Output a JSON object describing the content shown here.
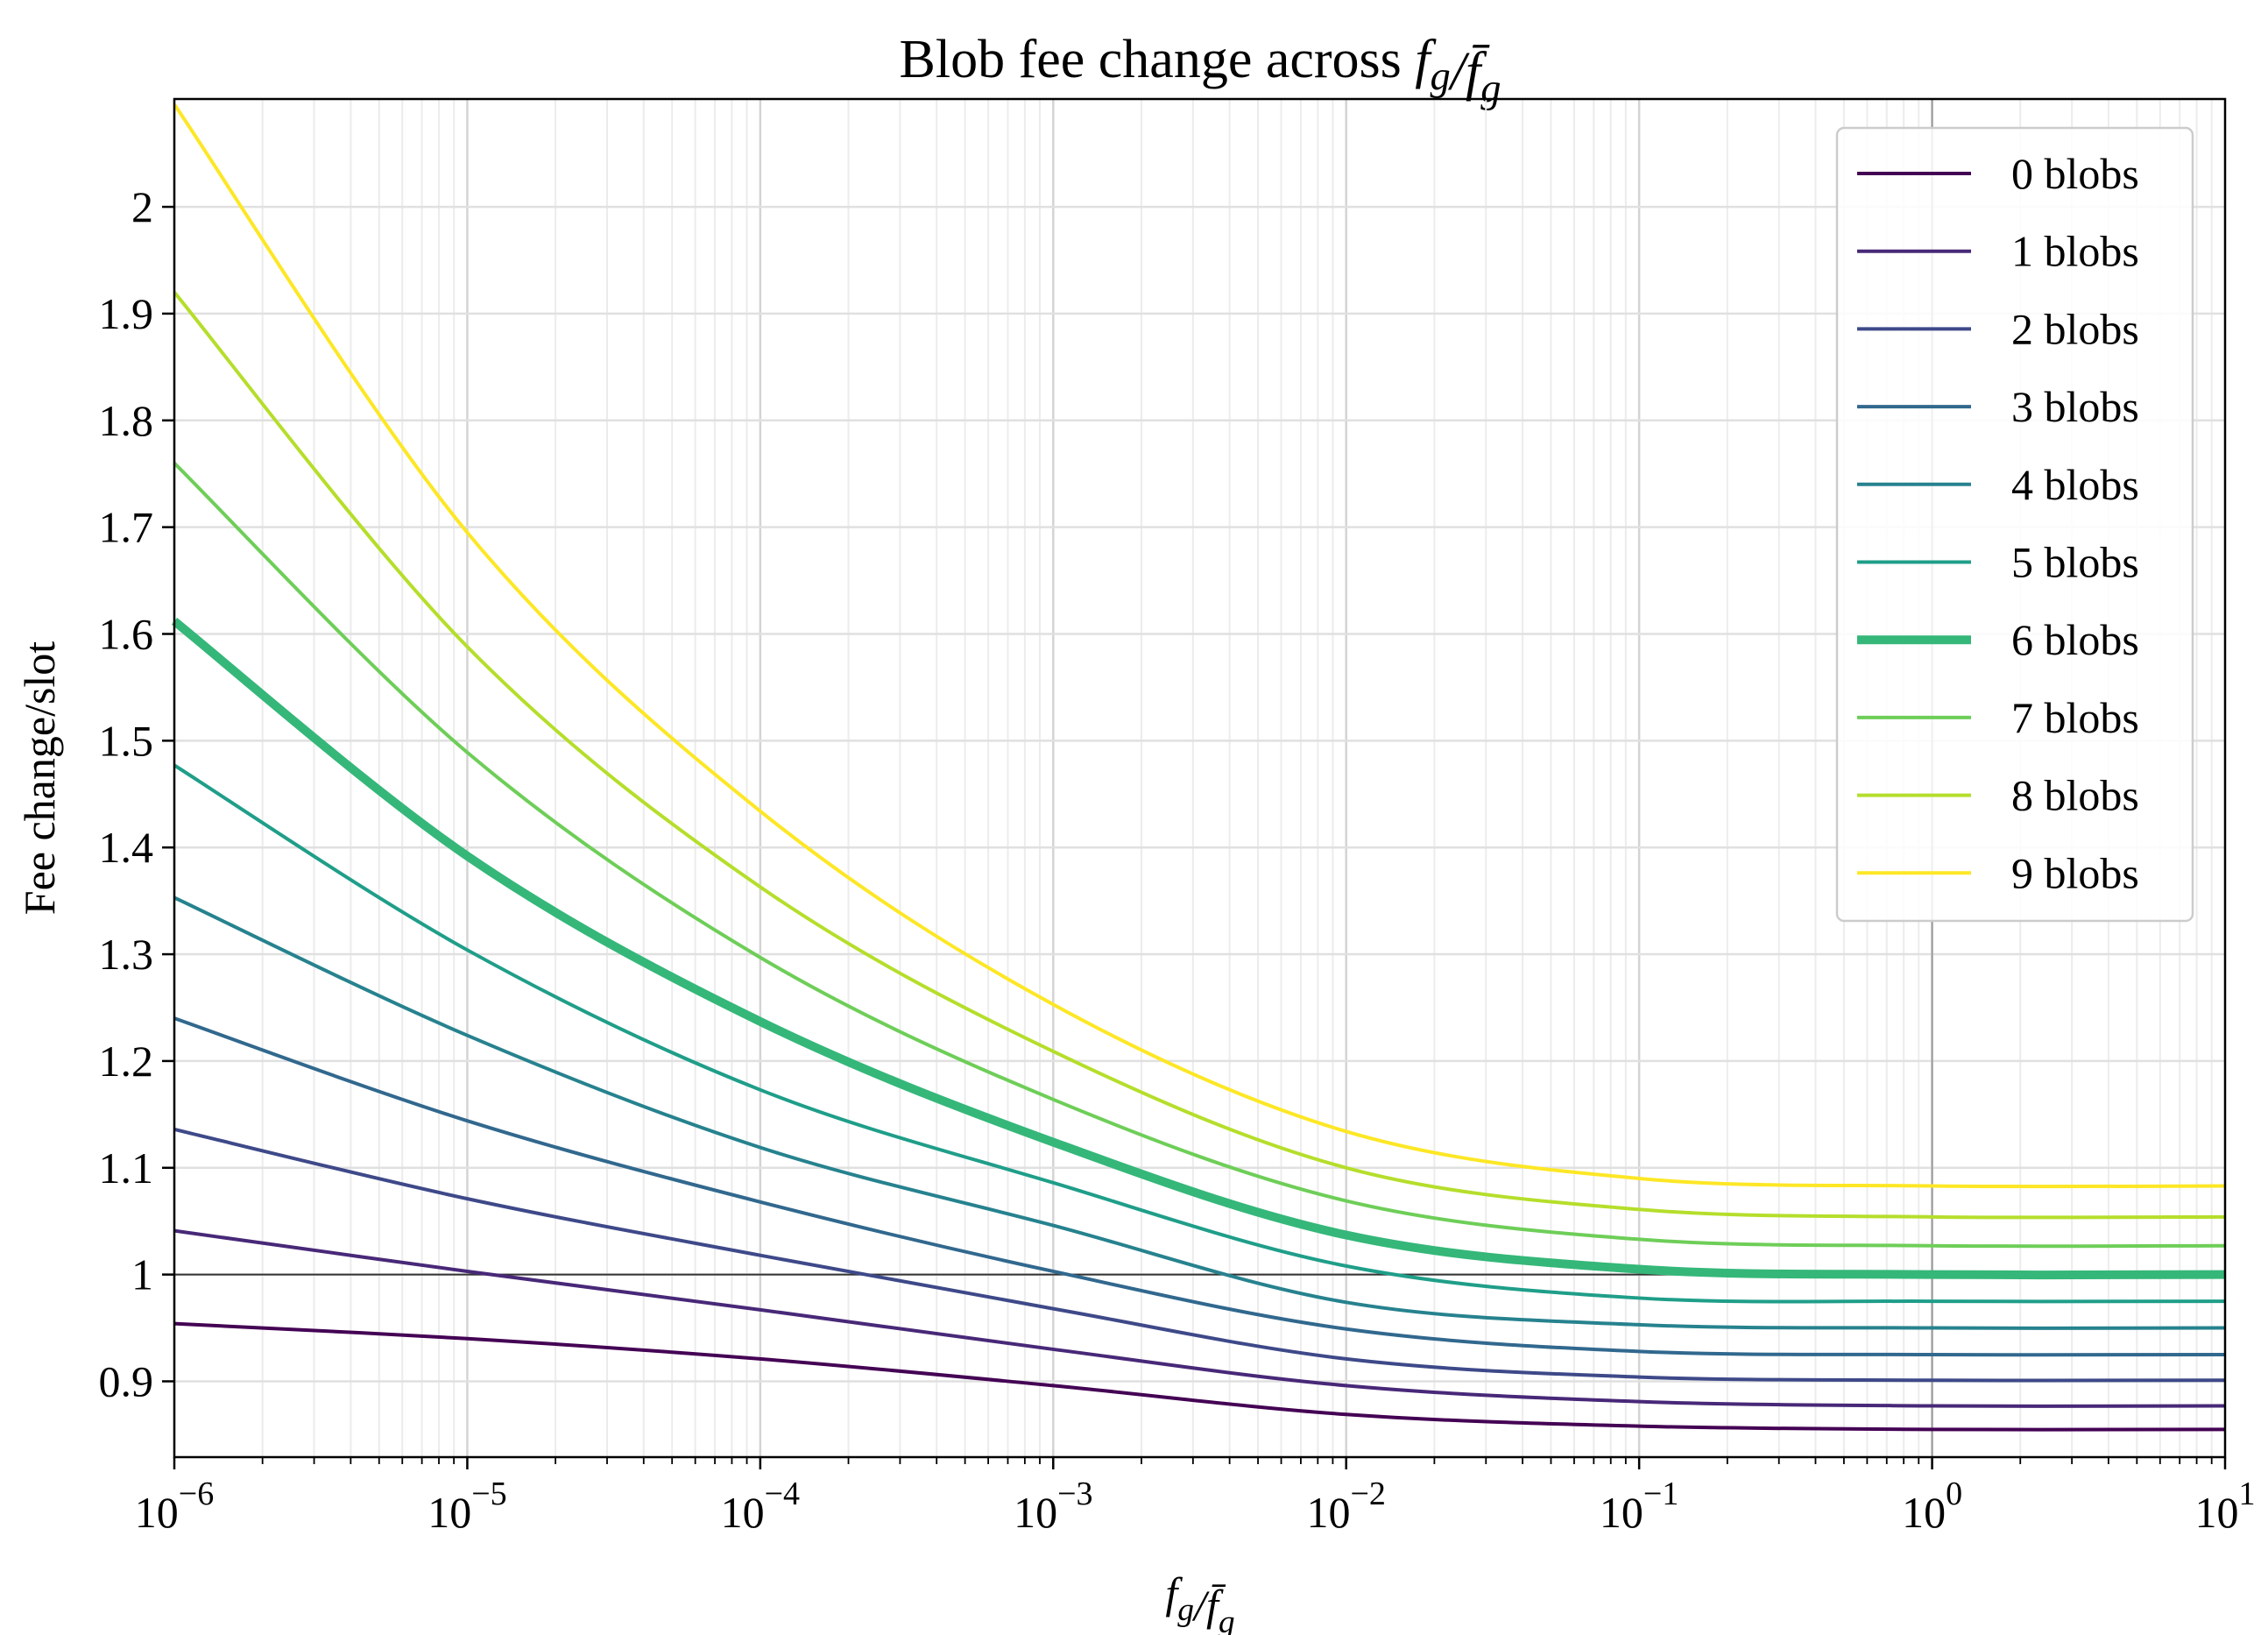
{
  "chart_data": {
    "type": "line",
    "title": "Blob fee change across f_g/f̄_g",
    "title_prefix": "Blob fee change across ",
    "title_math": "f_g/f̄_g",
    "xlabel": "f_g/f̄_g",
    "ylabel": "Fee change/slot",
    "xscale": "log",
    "xlim": [
      1e-06,
      10
    ],
    "ylim": [
      0.829,
      2.101
    ],
    "grid": "major and minor (x), major (y)",
    "legend_position": "top-right",
    "x_ticks": [
      {
        "base": "10",
        "exp": "−6"
      },
      {
        "base": "10",
        "exp": "−5"
      },
      {
        "base": "10",
        "exp": "−4"
      },
      {
        "base": "10",
        "exp": "−3"
      },
      {
        "base": "10",
        "exp": "−2"
      },
      {
        "base": "10",
        "exp": "−1"
      },
      {
        "base": "10",
        "exp": "0"
      },
      {
        "base": "10",
        "exp": "1"
      }
    ],
    "y_ticks": [
      "0.9",
      "1",
      "1.1",
      "1.2",
      "1.3",
      "1.4",
      "1.5",
      "1.6",
      "1.7",
      "1.8",
      "1.9",
      "2"
    ],
    "y_tick_values": [
      0.9,
      1.0,
      1.1,
      1.2,
      1.3,
      1.4,
      1.5,
      1.6,
      1.7,
      1.8,
      1.9,
      2.0
    ],
    "reference_lines": {
      "horizontal_y": 1,
      "vertical_x": 1
    },
    "x": [
      1e-06,
      1e-05,
      0.0001,
      0.001,
      0.01,
      0.1,
      1,
      10
    ],
    "series": [
      {
        "name": "0 blobs",
        "color": "#440154",
        "highlight": false,
        "values": [
          0.954,
          0.94,
          0.921,
          0.896,
          0.869,
          0.858,
          0.855,
          0.855
        ]
      },
      {
        "name": "1 blobs",
        "color": "#482878",
        "highlight": false,
        "values": [
          1.041,
          1.003,
          0.967,
          0.93,
          0.896,
          0.881,
          0.877,
          0.877
        ]
      },
      {
        "name": "2 blobs",
        "color": "#3e4989",
        "highlight": false,
        "values": [
          1.136,
          1.071,
          1.018,
          0.968,
          0.921,
          0.904,
          0.901,
          0.901
        ]
      },
      {
        "name": "3 blobs",
        "color": "#31688e",
        "highlight": false,
        "values": [
          1.24,
          1.144,
          1.068,
          1.003,
          0.949,
          0.928,
          0.925,
          0.925
        ]
      },
      {
        "name": "4 blobs",
        "color": "#26828e",
        "highlight": false,
        "values": [
          1.353,
          1.224,
          1.119,
          1.046,
          0.974,
          0.953,
          0.95,
          0.95
        ]
      },
      {
        "name": "5 blobs",
        "color": "#1f9e89",
        "highlight": false,
        "values": [
          1.477,
          1.304,
          1.173,
          1.086,
          1.008,
          0.978,
          0.975,
          0.975
        ]
      },
      {
        "name": "6 blobs",
        "color": "#35b779",
        "highlight": true,
        "values": [
          1.612,
          1.392,
          1.237,
          1.124,
          1.037,
          1.005,
          1.0,
          1.0
        ]
      },
      {
        "name": "7 blobs",
        "color": "#6ece58",
        "highlight": false,
        "values": [
          1.76,
          1.489,
          1.297,
          1.164,
          1.069,
          1.033,
          1.027,
          1.027
        ]
      },
      {
        "name": "8 blobs",
        "color": "#b5de2b",
        "highlight": false,
        "values": [
          1.92,
          1.588,
          1.363,
          1.209,
          1.1,
          1.061,
          1.054,
          1.054
        ]
      },
      {
        "name": "9 blobs",
        "color": "#fde725",
        "highlight": false,
        "values": [
          2.096,
          1.695,
          1.434,
          1.253,
          1.134,
          1.09,
          1.083,
          1.083
        ]
      }
    ]
  }
}
